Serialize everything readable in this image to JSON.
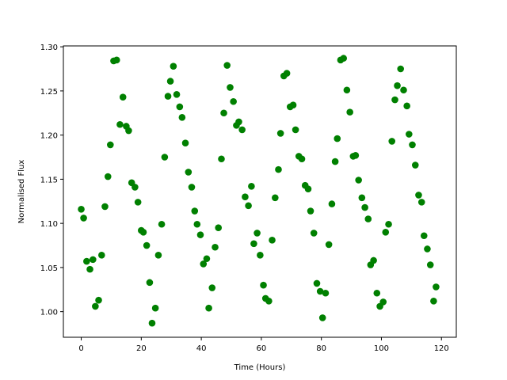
{
  "chart_data": {
    "type": "scatter",
    "xlabel": "Time (Hours)",
    "ylabel": "Normalised Flux",
    "color": "#008000",
    "xlim": [
      -5.95,
      124.95
    ],
    "ylim": [
      0.971,
      1.301
    ],
    "xticks": [
      0,
      20,
      40,
      60,
      80,
      100,
      120
    ],
    "yticks": [
      {
        "value": 1.0,
        "label": "1.00"
      },
      1.05,
      {
        "value": 1.1,
        "label": "1.10"
      },
      1.15,
      {
        "value": 1.2,
        "label": "1.20"
      },
      1.25,
      {
        "value": 1.3,
        "label": "1.30"
      }
    ],
    "x": [
      0,
      0.8,
      1.8,
      2.9,
      3.9,
      4.7,
      5.8,
      6.8,
      7.9,
      8.9,
      9.7,
      10.8,
      11.8,
      12.9,
      13.9,
      15.0,
      15.8,
      16.8,
      17.9,
      18.9,
      20.0,
      20.7,
      21.8,
      22.8,
      23.6,
      24.7,
      25.7,
      26.8,
      27.8,
      28.9,
      29.7,
      30.7,
      31.8,
      32.8,
      33.6,
      34.7,
      35.7,
      36.8,
      37.8,
      38.6,
      39.7,
      40.7,
      41.8,
      42.5,
      43.6,
      44.6,
      45.7,
      46.7,
      47.5,
      48.6,
      49.6,
      50.7,
      51.7,
      52.5,
      53.6,
      54.6,
      55.7,
      56.7,
      57.5,
      58.6,
      59.6,
      60.7,
      61.4,
      62.5,
      63.6,
      64.6,
      65.7,
      66.4,
      67.5,
      68.5,
      69.6,
      70.6,
      71.4,
      72.5,
      73.5,
      74.6,
      75.6,
      76.4,
      77.5,
      78.5,
      79.6,
      80.4,
      81.4,
      82.5,
      83.5,
      84.6,
      85.3,
      86.4,
      87.4,
      88.5,
      89.5,
      90.6,
      91.4,
      92.4,
      93.5,
      94.5,
      95.6,
      96.4,
      97.4,
      98.5,
      99.5,
      100.6,
      101.4,
      102.4,
      103.5,
      104.5,
      105.3,
      106.4,
      107.4,
      108.5,
      109.2,
      110.3,
      111.3,
      112.4,
      113.4,
      114.2,
      115.3,
      116.3,
      117.4,
      118.2
    ],
    "values": [
      1.116,
      1.106,
      1.057,
      1.048,
      1.059,
      1.006,
      1.013,
      1.064,
      1.119,
      1.153,
      1.189,
      1.284,
      1.285,
      1.212,
      1.243,
      1.21,
      1.205,
      1.146,
      1.141,
      1.124,
      1.092,
      1.09,
      1.075,
      1.033,
      0.987,
      1.004,
      1.064,
      1.099,
      1.175,
      1.244,
      1.261,
      1.278,
      1.246,
      1.232,
      1.22,
      1.191,
      1.158,
      1.141,
      1.114,
      1.099,
      1.087,
      1.054,
      1.06,
      1.004,
      1.027,
      1.073,
      1.095,
      1.173,
      1.225,
      1.279,
      1.254,
      1.238,
      1.211,
      1.215,
      1.206,
      1.13,
      1.12,
      1.142,
      1.077,
      1.089,
      1.064,
      1.03,
      1.015,
      1.012,
      1.081,
      1.129,
      1.161,
      1.202,
      1.267,
      1.27,
      1.232,
      1.234,
      1.206,
      1.176,
      1.173,
      1.143,
      1.139,
      1.114,
      1.089,
      1.032,
      1.023,
      0.993,
      1.021,
      1.076,
      1.122,
      1.17,
      1.196,
      1.285,
      1.287,
      1.251,
      1.226,
      1.176,
      1.177,
      1.149,
      1.129,
      1.118,
      1.105,
      1.053,
      1.058,
      1.021,
      1.006,
      1.011,
      1.09,
      1.099,
      1.193,
      1.24,
      1.256,
      1.275,
      1.251,
      1.233,
      1.201,
      1.189,
      1.166,
      1.132,
      1.124,
      1.086,
      1.071,
      1.053,
      1.012,
      1.028
    ]
  }
}
